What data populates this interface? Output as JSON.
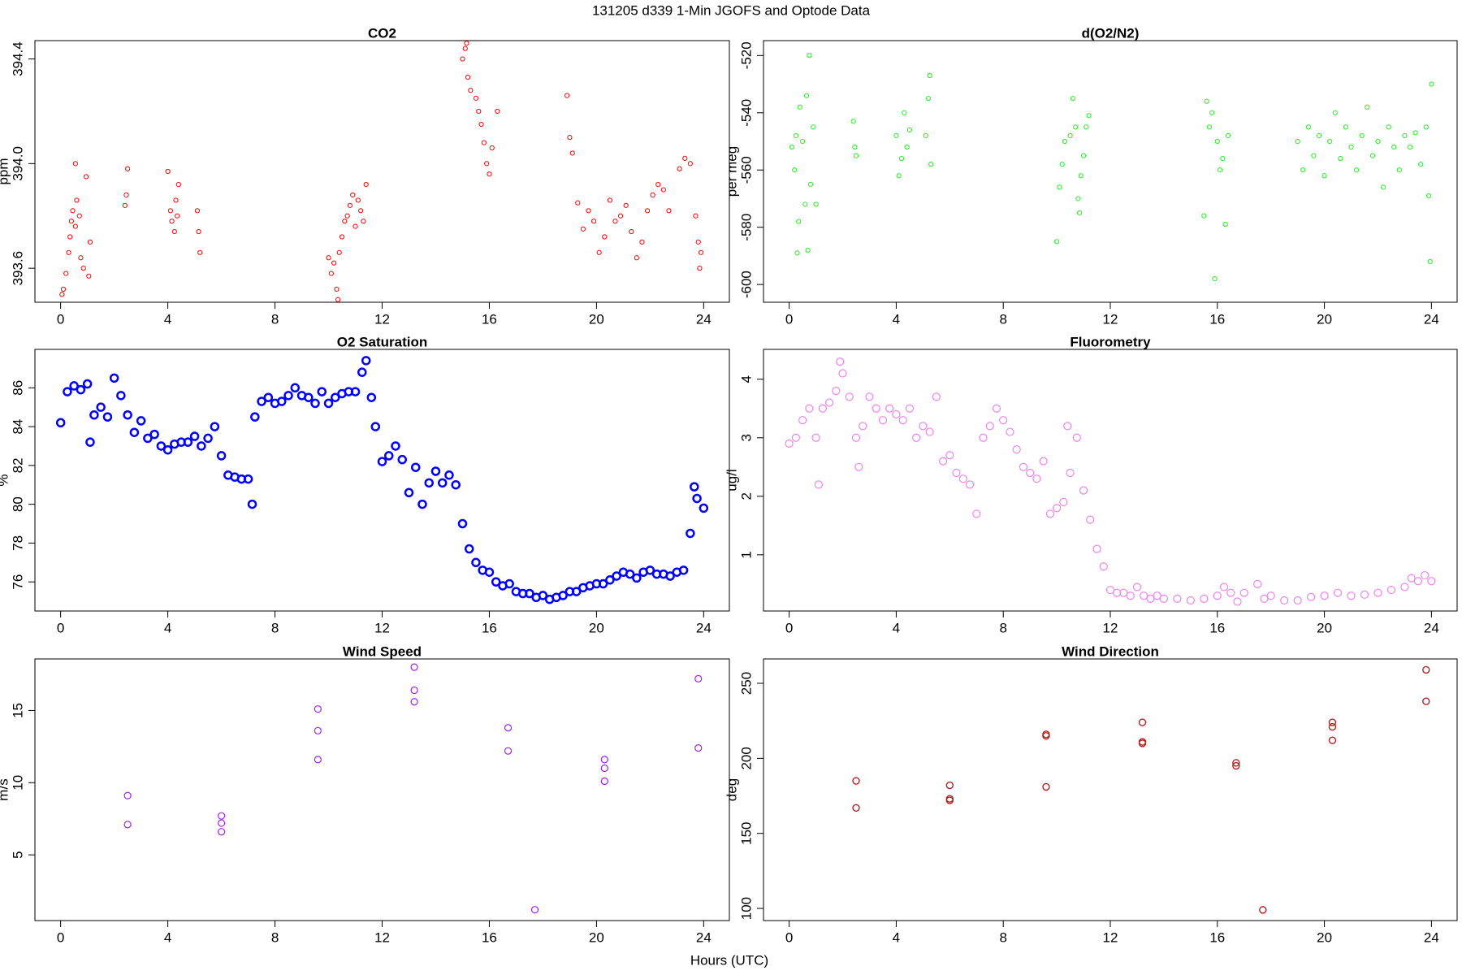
{
  "title": "131205   d339   1-Min  JGOFS and Optode Data",
  "x_label": "Hours (UTC)",
  "chart_data": [
    {
      "type": "scatter",
      "title": "CO2",
      "y_label": "ppm",
      "color": "#ff0000",
      "xlim": [
        -0.96,
        24.96
      ],
      "xticks": [
        0,
        4,
        8,
        12,
        16,
        20,
        24
      ],
      "ylim": [
        393.47,
        394.47
      ],
      "yticks": [
        393.6,
        {
          "value": 394,
          "label": "394.0"
        },
        394.4
      ],
      "x": [
        0.05,
        0.1,
        0.2,
        0.3,
        0.35,
        0.4,
        0.45,
        0.55,
        0.6,
        0.7,
        0.75,
        0.85,
        0.95,
        1.1,
        1.05,
        0.55,
        2.4,
        2.45,
        2.5,
        4.0,
        4.1,
        4.15,
        4.25,
        4.3,
        4.4,
        4.35,
        5.1,
        5.15,
        5.2,
        10.0,
        10.1,
        10.2,
        10.3,
        10.35,
        10.4,
        10.5,
        10.6,
        10.7,
        10.8,
        10.9,
        11.0,
        11.1,
        11.2,
        11.3,
        11.4,
        15.0,
        15.1,
        15.15,
        15.2,
        15.3,
        15.5,
        15.6,
        15.7,
        15.8,
        15.9,
        16.0,
        16.1,
        16.3,
        18.9,
        19.0,
        19.1,
        19.3,
        19.5,
        19.7,
        19.9,
        20.1,
        20.3,
        20.5,
        20.7,
        20.9,
        21.1,
        21.3,
        21.5,
        21.7,
        21.9,
        22.1,
        22.3,
        22.5,
        22.7,
        23.1,
        23.3,
        23.5,
        23.7,
        23.8,
        23.85,
        23.9
      ],
      "values": [
        393.5,
        393.52,
        393.58,
        393.66,
        393.72,
        393.78,
        393.82,
        393.76,
        393.86,
        393.8,
        393.64,
        393.6,
        393.95,
        393.7,
        393.57,
        394.0,
        393.84,
        393.88,
        393.98,
        393.97,
        393.82,
        393.78,
        393.74,
        393.86,
        393.92,
        393.8,
        393.82,
        393.74,
        393.66,
        393.64,
        393.58,
        393.62,
        393.52,
        393.48,
        393.66,
        393.72,
        393.78,
        393.8,
        393.84,
        393.88,
        393.76,
        393.86,
        393.82,
        393.78,
        393.92,
        394.4,
        394.44,
        394.46,
        394.33,
        394.28,
        394.25,
        394.2,
        394.15,
        394.08,
        394.0,
        393.96,
        394.06,
        394.2,
        394.26,
        394.1,
        394.04,
        393.85,
        393.75,
        393.82,
        393.78,
        393.66,
        393.72,
        393.86,
        393.78,
        393.8,
        393.84,
        393.74,
        393.64,
        393.7,
        393.82,
        393.88,
        393.92,
        393.9,
        393.82,
        393.98,
        394.02,
        394.0,
        393.8,
        393.7,
        393.6,
        393.66
      ]
    },
    {
      "type": "scatter",
      "title": "d(O2/N2)",
      "y_label": "per meg",
      "color": "#22ee22",
      "xlim": [
        -0.96,
        24.96
      ],
      "xticks": [
        0,
        4,
        8,
        12,
        16,
        20,
        24
      ],
      "ylim": [
        -606.2,
        -514.8
      ],
      "yticks": [
        -520,
        -540,
        -560,
        -580,
        -600
      ],
      "x": [
        0.1,
        0.2,
        0.25,
        0.3,
        0.35,
        0.4,
        0.5,
        0.6,
        0.65,
        0.7,
        0.75,
        0.8,
        0.9,
        1.0,
        2.4,
        2.45,
        2.5,
        4.0,
        4.1,
        4.2,
        4.3,
        4.4,
        4.5,
        5.1,
        5.2,
        5.3,
        5.25,
        10.0,
        10.1,
        10.2,
        10.3,
        10.5,
        10.6,
        10.7,
        10.8,
        10.9,
        11.0,
        11.1,
        11.2,
        10.85,
        15.6,
        15.7,
        15.8,
        15.9,
        16.0,
        16.1,
        16.2,
        16.4,
        15.5,
        16.3,
        19.0,
        19.2,
        19.4,
        19.6,
        19.8,
        20.0,
        20.2,
        20.4,
        20.6,
        20.8,
        21.0,
        21.2,
        21.4,
        21.6,
        21.8,
        22.0,
        22.2,
        22.4,
        22.6,
        22.8,
        23.0,
        23.2,
        23.4,
        23.6,
        23.8,
        23.9,
        23.95,
        24.0
      ],
      "values": [
        -552,
        -560,
        -548,
        -589,
        -578,
        -538,
        -550,
        -572,
        -534,
        -588,
        -520,
        -565,
        -545,
        -572,
        -543,
        -552,
        -555,
        -548,
        -562,
        -556,
        -540,
        -552,
        -546,
        -548,
        -535,
        -558,
        -527,
        -585,
        -566,
        -558,
        -550,
        -548,
        -535,
        -545,
        -570,
        -562,
        -555,
        -545,
        -541,
        -575,
        -536,
        -545,
        -540,
        -598,
        -550,
        -560,
        -556,
        -548,
        -576,
        -579,
        -550,
        -560,
        -545,
        -555,
        -548,
        -562,
        -550,
        -540,
        -556,
        -545,
        -552,
        -560,
        -548,
        -538,
        -555,
        -550,
        -566,
        -545,
        -552,
        -560,
        -548,
        -552,
        -547,
        -558,
        -545,
        -569,
        -592,
        -530
      ]
    },
    {
      "type": "scatter",
      "title": "O2 Saturation",
      "y_label": "%",
      "color": "#0000ff",
      "xlim": [
        -0.96,
        24.96
      ],
      "xticks": [
        0,
        4,
        8,
        12,
        16,
        20,
        24
      ],
      "ylim": [
        74.5,
        87.98
      ],
      "yticks": [
        76,
        78,
        80,
        82,
        84,
        86
      ],
      "x": [
        0,
        0.25,
        0.5,
        0.75,
        1.0,
        1.1,
        1.25,
        1.5,
        1.75,
        2.0,
        2.25,
        2.5,
        2.75,
        3.0,
        3.25,
        3.5,
        3.75,
        4.0,
        4.25,
        4.5,
        4.75,
        5.0,
        5.25,
        5.5,
        5.75,
        6.0,
        6.25,
        6.5,
        6.75,
        7.0,
        7.15,
        7.25,
        7.5,
        7.75,
        8.0,
        8.25,
        8.5,
        8.75,
        9.0,
        9.25,
        9.5,
        9.75,
        10.0,
        10.25,
        10.5,
        10.75,
        11.0,
        11.25,
        11.4,
        11.6,
        11.75,
        12.0,
        12.25,
        12.5,
        12.75,
        13.0,
        13.25,
        13.5,
        13.75,
        14.0,
        14.25,
        14.5,
        14.75,
        15.0,
        15.25,
        15.5,
        15.75,
        16.0,
        16.25,
        16.5,
        16.75,
        17.0,
        17.25,
        17.5,
        17.75,
        18.0,
        18.25,
        18.5,
        18.75,
        19.0,
        19.25,
        19.5,
        19.75,
        20.0,
        20.25,
        20.5,
        20.75,
        21.0,
        21.25,
        21.5,
        21.75,
        22.0,
        22.25,
        22.5,
        22.75,
        23.0,
        23.25,
        23.5,
        23.65,
        23.75,
        24.0
      ],
      "values": [
        84.2,
        85.8,
        86.1,
        85.9,
        86.2,
        83.2,
        84.6,
        85.0,
        84.5,
        86.5,
        85.6,
        84.6,
        83.7,
        84.3,
        83.4,
        83.6,
        83.0,
        82.8,
        83.1,
        83.2,
        83.2,
        83.5,
        83.0,
        83.4,
        84.0,
        82.5,
        81.5,
        81.4,
        81.3,
        81.3,
        80.0,
        84.5,
        85.3,
        85.5,
        85.2,
        85.3,
        85.6,
        86.0,
        85.6,
        85.5,
        85.2,
        85.8,
        85.2,
        85.5,
        85.7,
        85.8,
        85.8,
        86.8,
        87.4,
        85.5,
        84.0,
        82.2,
        82.5,
        83.0,
        82.3,
        80.6,
        81.9,
        80.0,
        81.1,
        81.7,
        81.1,
        81.5,
        81.0,
        79.0,
        77.7,
        77.0,
        76.6,
        76.5,
        76.0,
        75.8,
        75.9,
        75.5,
        75.4,
        75.4,
        75.2,
        75.3,
        75.1,
        75.2,
        75.3,
        75.5,
        75.5,
        75.7,
        75.8,
        75.9,
        75.9,
        76.1,
        76.3,
        76.5,
        76.4,
        76.2,
        76.5,
        76.6,
        76.4,
        76.4,
        76.3,
        76.5,
        76.6,
        78.5,
        80.9,
        80.3,
        79.8
      ]
    },
    {
      "type": "scatter",
      "title": "Fluorometry",
      "y_label": "ug/l",
      "color": "#ee82ee",
      "xlim": [
        -0.96,
        24.96
      ],
      "xticks": [
        0,
        4,
        8,
        12,
        16,
        20,
        24
      ],
      "ylim": [
        0.04,
        4.51
      ],
      "yticks": [
        1,
        2,
        3,
        4
      ],
      "x": [
        0,
        0.25,
        0.5,
        0.75,
        1.0,
        1.1,
        1.25,
        1.5,
        1.75,
        1.9,
        2.0,
        2.25,
        2.5,
        2.6,
        2.75,
        3.0,
        3.25,
        3.5,
        3.75,
        4.0,
        4.25,
        4.5,
        4.75,
        5.0,
        5.25,
        5.5,
        5.75,
        6.0,
        6.25,
        6.5,
        6.75,
        7.0,
        7.25,
        7.5,
        7.75,
        8.0,
        8.25,
        8.5,
        8.75,
        9.0,
        9.25,
        9.5,
        9.75,
        10.0,
        10.25,
        10.4,
        10.5,
        10.75,
        11.0,
        11.25,
        11.5,
        11.75,
        12.0,
        12.25,
        12.5,
        12.75,
        13.0,
        13.25,
        13.5,
        13.75,
        14.0,
        14.5,
        15.0,
        15.5,
        16.0,
        16.25,
        16.5,
        16.75,
        17.0,
        17.5,
        17.75,
        18.0,
        18.5,
        19.0,
        19.5,
        20.0,
        20.5,
        21.0,
        21.5,
        22.0,
        22.5,
        23.0,
        23.25,
        23.5,
        23.75,
        24.0
      ],
      "values": [
        2.9,
        3.0,
        3.3,
        3.5,
        3.0,
        2.2,
        3.5,
        3.6,
        3.8,
        4.3,
        4.1,
        3.7,
        3.0,
        2.5,
        3.2,
        3.7,
        3.5,
        3.3,
        3.5,
        3.4,
        3.3,
        3.5,
        3.0,
        3.2,
        3.1,
        3.7,
        2.6,
        2.7,
        2.4,
        2.3,
        2.2,
        1.7,
        3.0,
        3.2,
        3.5,
        3.3,
        3.1,
        2.8,
        2.5,
        2.4,
        2.3,
        2.6,
        1.7,
        1.8,
        1.9,
        3.2,
        2.4,
        3.0,
        2.1,
        1.6,
        1.1,
        0.8,
        0.4,
        0.35,
        0.35,
        0.3,
        0.45,
        0.3,
        0.25,
        0.3,
        0.25,
        0.25,
        0.22,
        0.25,
        0.3,
        0.45,
        0.35,
        0.2,
        0.35,
        0.5,
        0.25,
        0.3,
        0.22,
        0.22,
        0.28,
        0.3,
        0.35,
        0.3,
        0.32,
        0.35,
        0.4,
        0.45,
        0.6,
        0.55,
        0.65,
        0.55
      ]
    },
    {
      "type": "scatter",
      "title": "Wind Speed",
      "y_label": "m/s",
      "color": "#a020f0",
      "xlim": [
        -0.96,
        24.96
      ],
      "xticks": [
        0,
        4,
        8,
        12,
        16,
        20,
        24
      ],
      "ylim": [
        0.45,
        18.57
      ],
      "yticks": [
        5,
        10,
        15
      ],
      "x": [
        2.5,
        2.5,
        6.0,
        6.0,
        6.0,
        9.6,
        9.6,
        9.6,
        13.2,
        13.2,
        13.2,
        16.7,
        16.7,
        17.7,
        20.3,
        20.3,
        20.3,
        23.8,
        23.8
      ],
      "values": [
        9.1,
        7.1,
        7.7,
        7.2,
        6.6,
        15.1,
        13.6,
        11.6,
        18.0,
        16.4,
        15.6,
        13.8,
        12.2,
        1.2,
        11.6,
        11.0,
        10.1,
        17.2,
        12.4
      ]
    },
    {
      "type": "scatter",
      "title": "Wind Direction",
      "y_label": "deg",
      "color": "#b22222",
      "xlim": [
        -0.96,
        24.96
      ],
      "xticks": [
        0,
        4,
        8,
        12,
        16,
        20,
        24
      ],
      "ylim": [
        91.9,
        266.25
      ],
      "yticks": [
        100,
        150,
        200,
        250
      ],
      "x": [
        2.5,
        2.5,
        6.0,
        6.0,
        6.0,
        9.6,
        9.6,
        9.6,
        13.2,
        13.2,
        13.2,
        16.7,
        16.7,
        17.7,
        20.3,
        20.3,
        20.3,
        23.8,
        23.8
      ],
      "values": [
        185,
        167,
        182,
        173,
        172,
        216,
        215,
        181,
        224,
        211,
        210,
        197,
        195,
        99,
        224,
        221,
        212,
        259,
        238
      ]
    }
  ]
}
